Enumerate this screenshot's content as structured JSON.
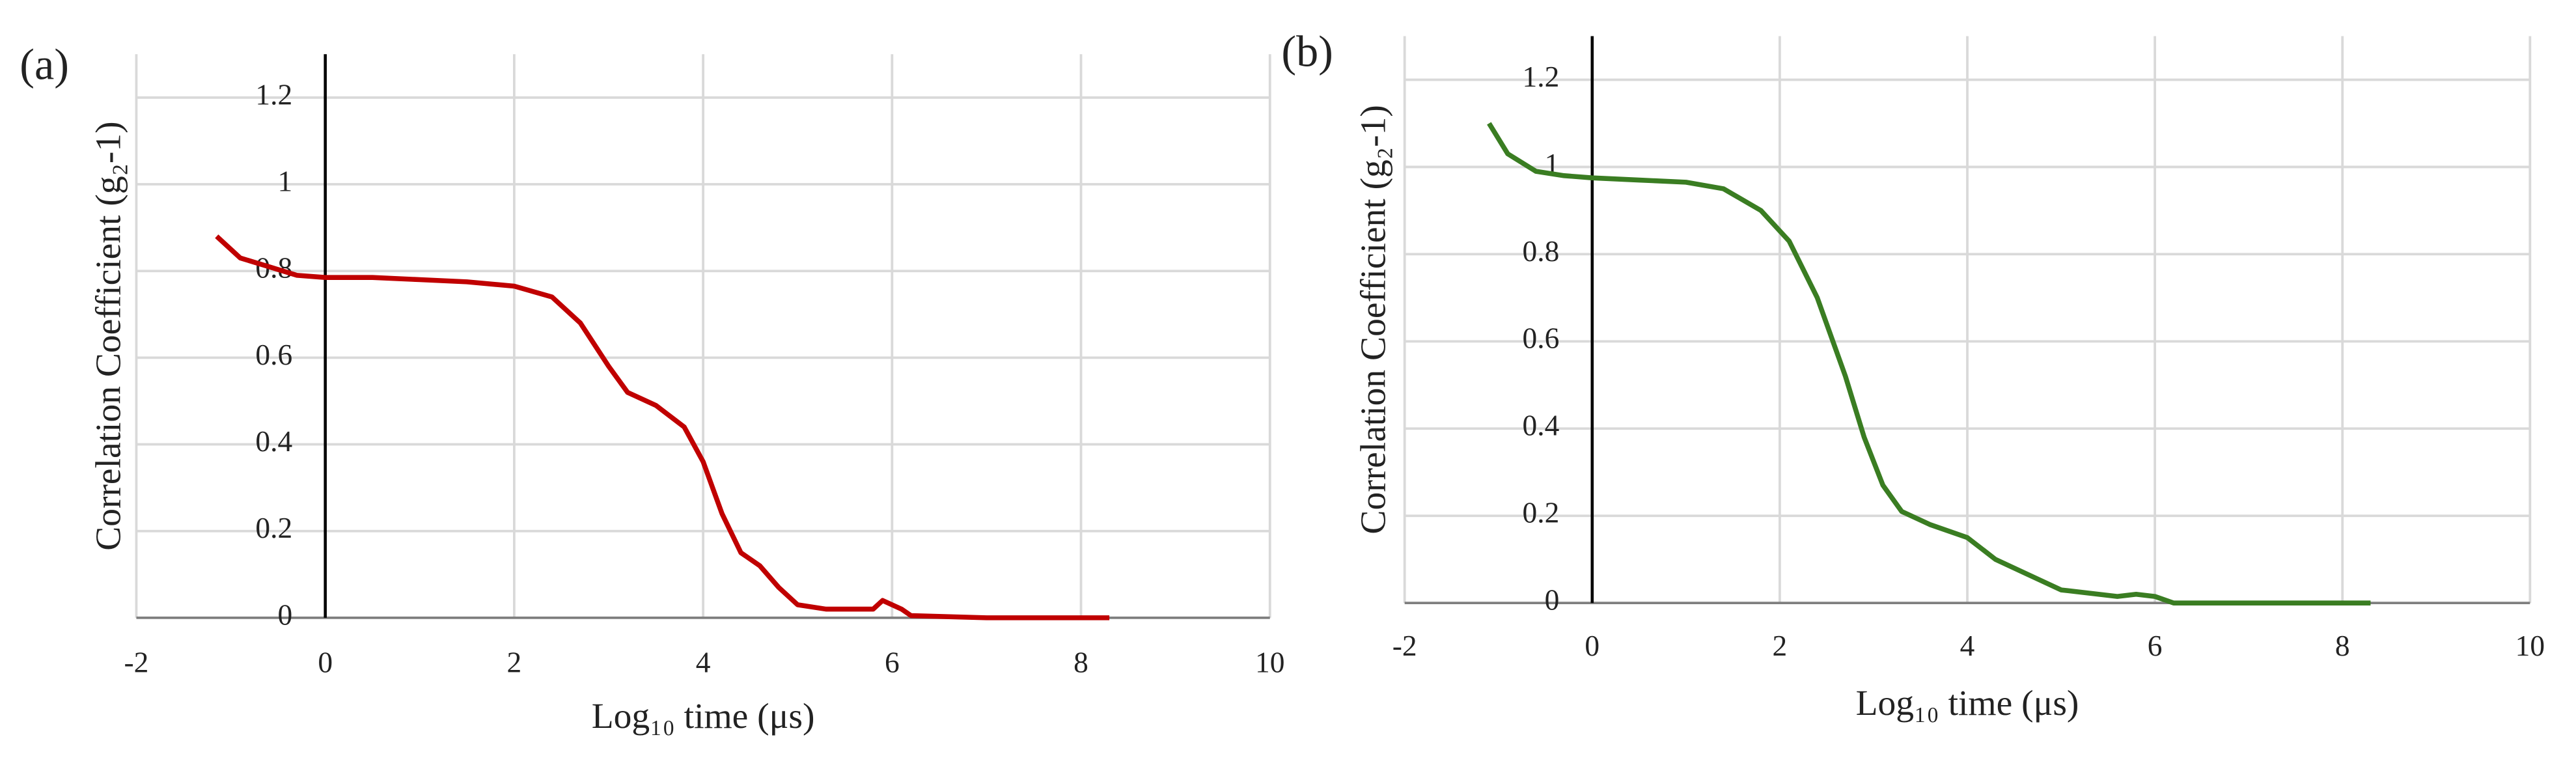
{
  "chart_data": [
    {
      "type": "line",
      "panel_label": "(a)",
      "x_label": "Log₁₀ time (μs)",
      "y_label": "Correlation Coefficient (g₂-1)",
      "x": [
        -1.15,
        -0.9,
        -0.6,
        -0.3,
        0,
        0.5,
        1,
        1.5,
        2,
        2.4,
        2.7,
        3,
        3.2,
        3.5,
        3.8,
        4,
        4.2,
        4.4,
        4.6,
        4.8,
        5,
        5.3,
        5.6,
        5.8,
        5.9,
        6.1,
        6.2,
        7,
        8.3
      ],
      "values": [
        0.88,
        0.83,
        0.81,
        0.79,
        0.785,
        0.785,
        0.78,
        0.775,
        0.765,
        0.74,
        0.68,
        0.58,
        0.52,
        0.49,
        0.44,
        0.36,
        0.24,
        0.15,
        0.12,
        0.07,
        0.03,
        0.02,
        0.02,
        0.02,
        0.04,
        0.02,
        0.005,
        0,
        0
      ],
      "color": "#c00000",
      "xlim": [
        -2,
        10
      ],
      "xticks": [
        -2,
        0,
        2,
        4,
        6,
        8,
        10
      ],
      "ylim": [
        0,
        1.3
      ],
      "yticks": [
        0,
        0.2,
        0.4,
        0.6,
        0.8,
        1,
        1.2
      ],
      "grid": true
    },
    {
      "type": "line",
      "panel_label": "(b)",
      "x_label": "Log₁₀ time (μs)",
      "y_label": "Correlation Coefficient (g₂-1)",
      "x": [
        -1.1,
        -0.9,
        -0.6,
        -0.3,
        0,
        0.5,
        1,
        1.4,
        1.8,
        2.1,
        2.4,
        2.7,
        2.9,
        3.1,
        3.3,
        3.6,
        4,
        4.3,
        4.6,
        5,
        5.4,
        5.6,
        5.8,
        6,
        6.2,
        7,
        8.3
      ],
      "values": [
        1.1,
        1.03,
        0.99,
        0.98,
        0.975,
        0.97,
        0.965,
        0.95,
        0.9,
        0.83,
        0.7,
        0.52,
        0.38,
        0.27,
        0.21,
        0.18,
        0.15,
        0.1,
        0.07,
        0.03,
        0.02,
        0.015,
        0.02,
        0.015,
        0,
        0,
        0
      ],
      "color": "#3a7d22",
      "xlim": [
        -2,
        10
      ],
      "xticks": [
        -2,
        0,
        2,
        4,
        6,
        8,
        10
      ],
      "ylim": [
        0,
        1.3
      ],
      "yticks": [
        0,
        0.2,
        0.4,
        0.6,
        0.8,
        1,
        1.2
      ],
      "grid": true
    }
  ]
}
